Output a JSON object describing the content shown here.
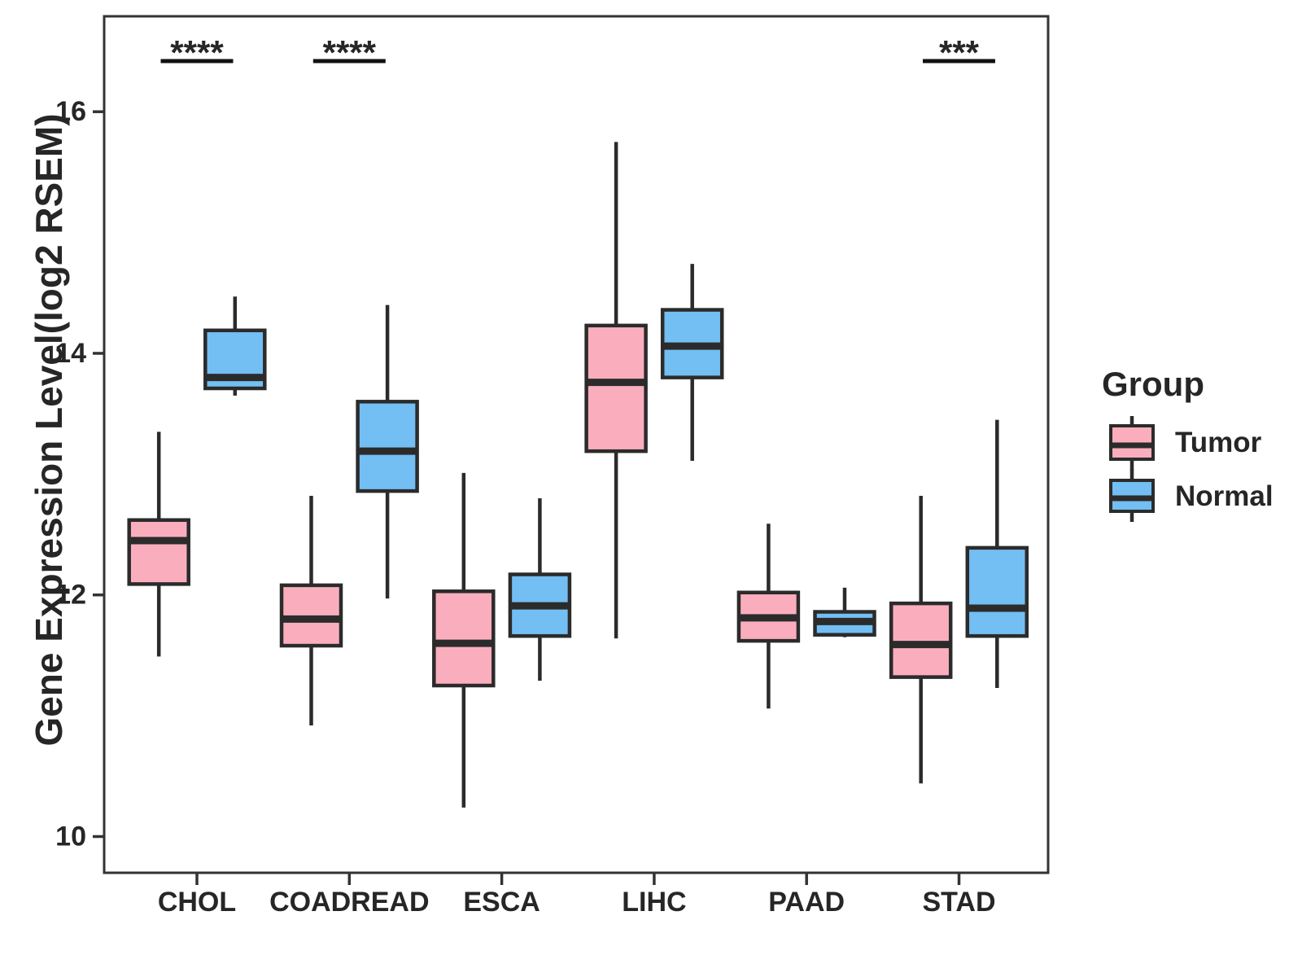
{
  "chart_data": {
    "type": "boxplot",
    "title": "",
    "xlabel": "",
    "ylabel": "Gene Expression Level(log2 RSEM)",
    "ylim": [
      9.7,
      16.79
    ],
    "yticks": [
      10,
      12,
      14,
      16
    ],
    "grid": false,
    "categories": [
      "CHOL",
      "COADREAD",
      "ESCA",
      "LIHC",
      "PAAD",
      "STAD"
    ],
    "series": [
      {
        "name": "Tumor",
        "color": "#FAAEBD",
        "boxes": [
          {
            "lo": 11.49,
            "q1": 12.09,
            "med": 12.45,
            "q3": 12.62,
            "hi": 13.35
          },
          {
            "lo": 10.92,
            "q1": 11.58,
            "med": 11.8,
            "q3": 12.08,
            "hi": 12.82
          },
          {
            "lo": 10.24,
            "q1": 11.25,
            "med": 11.6,
            "q3": 12.03,
            "hi": 13.01
          },
          {
            "lo": 11.64,
            "q1": 13.19,
            "med": 13.76,
            "q3": 14.23,
            "hi": 15.75
          },
          {
            "lo": 11.06,
            "q1": 11.62,
            "med": 11.81,
            "q3": 12.02,
            "hi": 12.59
          },
          {
            "lo": 10.44,
            "q1": 11.32,
            "med": 11.59,
            "q3": 11.93,
            "hi": 12.82
          }
        ]
      },
      {
        "name": "Normal",
        "color": "#73BEF3",
        "boxes": [
          {
            "lo": 13.65,
            "q1": 13.71,
            "med": 13.8,
            "q3": 14.19,
            "hi": 14.47
          },
          {
            "lo": 11.97,
            "q1": 12.86,
            "med": 13.19,
            "q3": 13.6,
            "hi": 14.4
          },
          {
            "lo": 11.29,
            "q1": 11.66,
            "med": 11.91,
            "q3": 12.17,
            "hi": 12.8
          },
          {
            "lo": 13.11,
            "q1": 13.8,
            "med": 14.06,
            "q3": 14.36,
            "hi": 14.74
          },
          {
            "lo": 11.65,
            "q1": 11.67,
            "med": 11.78,
            "q3": 11.86,
            "hi": 12.06
          },
          {
            "lo": 11.23,
            "q1": 11.66,
            "med": 11.89,
            "q3": 12.39,
            "hi": 13.45
          }
        ]
      }
    ],
    "annotations": [
      {
        "category": "CHOL",
        "label": "****"
      },
      {
        "category": "COADREAD",
        "label": "****"
      },
      {
        "category": "STAD",
        "label": "***"
      }
    ],
    "legend": {
      "title": "Group",
      "entries": [
        "Tumor",
        "Normal"
      ],
      "position": "right"
    }
  }
}
